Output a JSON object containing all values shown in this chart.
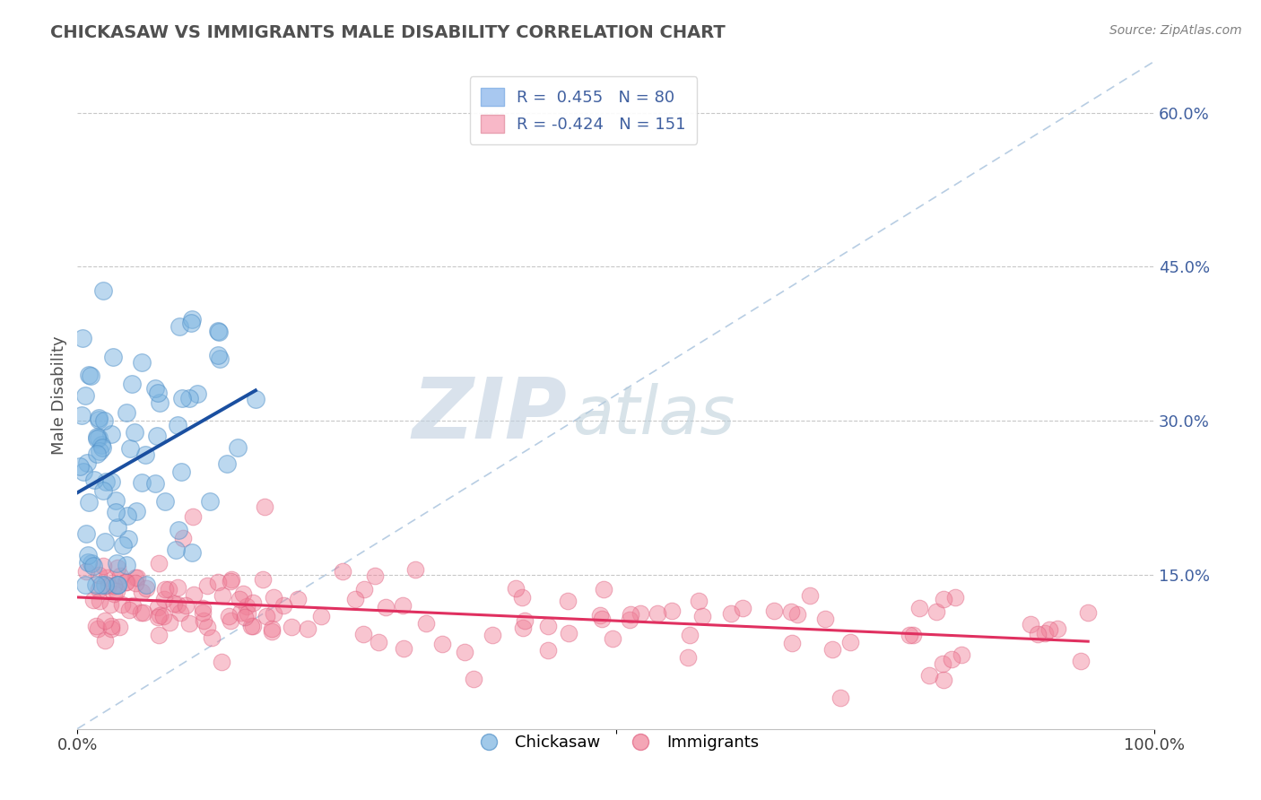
{
  "title": "CHICKASAW VS IMMIGRANTS MALE DISABILITY CORRELATION CHART",
  "source_text": "Source: ZipAtlas.com",
  "ylabel": "Male Disability",
  "xlim": [
    0.0,
    1.0
  ],
  "ylim": [
    0.0,
    0.65
  ],
  "ytick_right_vals": [
    0.15,
    0.3,
    0.45,
    0.6
  ],
  "ytick_right_labels": [
    "15.0%",
    "30.0%",
    "45.0%",
    "60.0%"
  ],
  "blue_R": 0.455,
  "blue_N": 80,
  "pink_R": -0.424,
  "pink_N": 151,
  "blue_color": "#7ab3e0",
  "blue_edge_color": "#5090c8",
  "pink_color": "#f08098",
  "pink_edge_color": "#e06080",
  "blue_line_color": "#1a4fa0",
  "pink_line_color": "#e03060",
  "diag_color": "#b0c8e0",
  "grid_color": "#c8c8c8",
  "watermark_ZIP_color": "#c0d0e0",
  "watermark_atlas_color": "#b8ccd8",
  "background_color": "#ffffff",
  "title_color": "#505050",
  "source_color": "#808080",
  "tick_color": "#4060a0",
  "legend_text_color": "#4060a0"
}
